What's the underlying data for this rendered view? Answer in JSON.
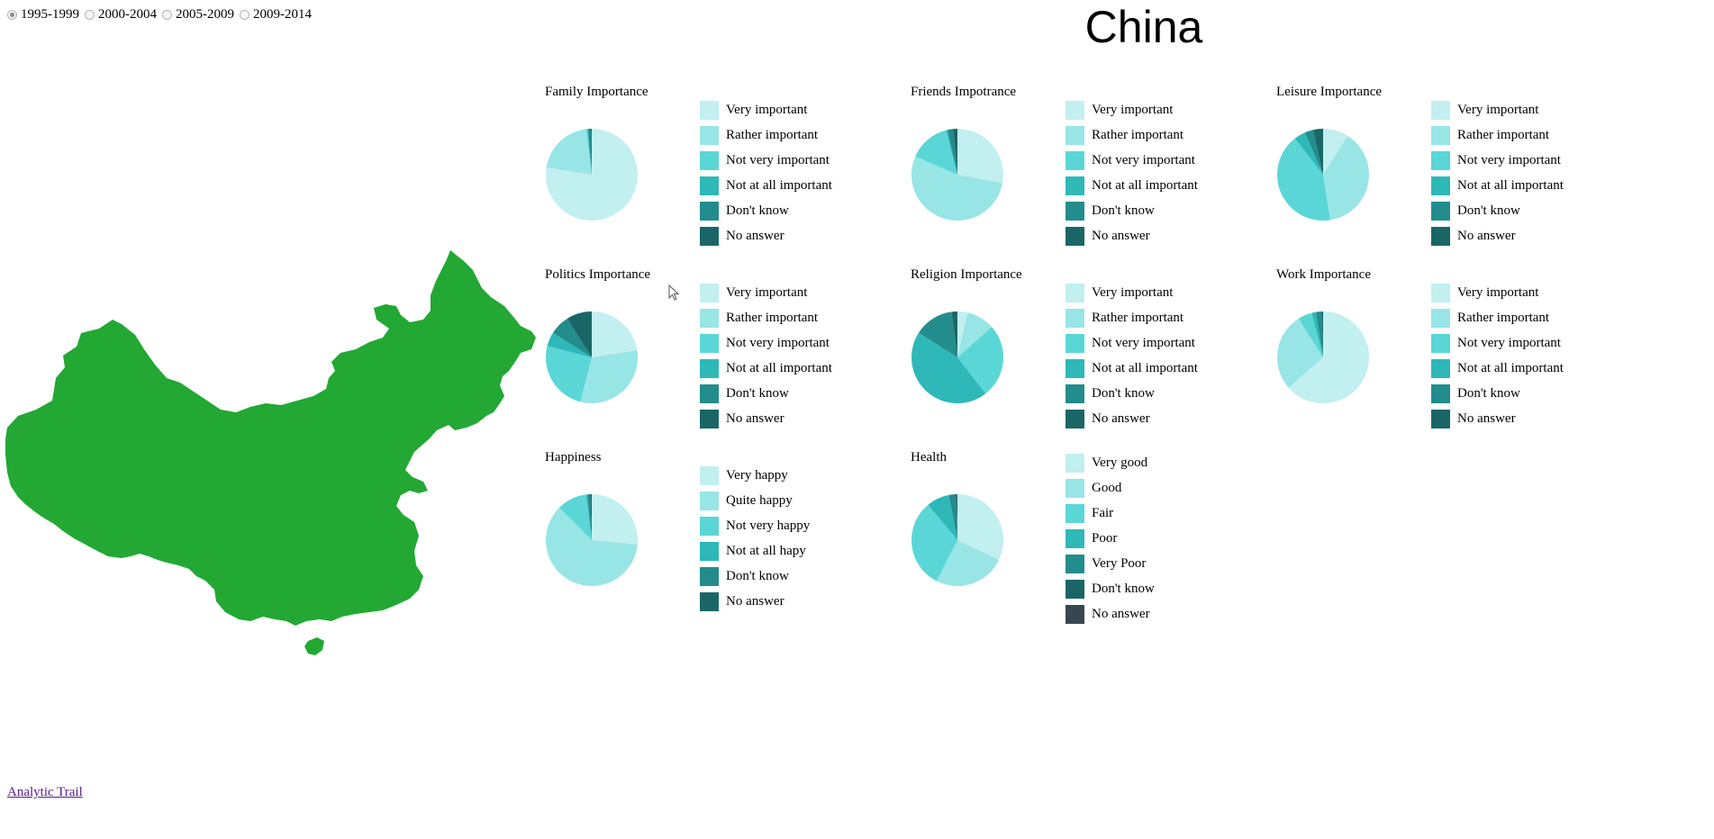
{
  "period_options": [
    {
      "label": "1995-1999",
      "checked": true
    },
    {
      "label": "2000-2004",
      "checked": false
    },
    {
      "label": "2005-2009",
      "checked": false
    },
    {
      "label": "2009-2014",
      "checked": false
    }
  ],
  "country": "China",
  "map_color": "#22a833",
  "analytic_link": "Analytic Trail",
  "importance_legend": [
    "Very important",
    "Rather important",
    "Not very important",
    "Not at all important",
    "Don't know",
    "No answer"
  ],
  "happiness_legend": [
    "Very happy",
    "Quite happy",
    "Not very happy",
    "Not at all hapy",
    "Don't know",
    "No answer"
  ],
  "health_legend": [
    "Very good",
    "Good",
    "Fair",
    "Poor",
    "Very Poor",
    "Don't know",
    "No answer"
  ],
  "palette": [
    "#c2eff0",
    "#98e5e6",
    "#5ad6d6",
    "#2eb8b8",
    "#238c8c",
    "#1a6666",
    "#37474f"
  ],
  "chart_data": [
    {
      "type": "pie",
      "title": "Family Importance",
      "categories": [
        "Very important",
        "Rather important",
        "Not very important",
        "Not at all important",
        "Don't know",
        "No answer"
      ],
      "values": [
        77.5,
        20.5,
        0.5,
        0.2,
        1.0,
        0.3
      ]
    },
    {
      "type": "pie",
      "title": "Friends Impotrance",
      "categories": [
        "Very important",
        "Rather important",
        "Not very important",
        "Not at all important",
        "Don't know",
        "No answer"
      ],
      "values": [
        28.0,
        53.5,
        14.5,
        0.5,
        2.0,
        1.5
      ]
    },
    {
      "type": "pie",
      "title": "Leisure Importance",
      "categories": [
        "Very important",
        "Rather important",
        "Not very important",
        "Not at all important",
        "Don't know",
        "No answer"
      ],
      "values": [
        9.0,
        38.5,
        42.0,
        4.0,
        3.0,
        3.5
      ]
    },
    {
      "type": "pie",
      "title": "Politics Importance",
      "categories": [
        "Very important",
        "Rather important",
        "Not very important",
        "Not at all important",
        "Don't know",
        "No answer"
      ],
      "values": [
        22.5,
        31.5,
        25.0,
        5.0,
        7.0,
        9.0
      ]
    },
    {
      "type": "pie",
      "title": "Religion Importance",
      "categories": [
        "Very important",
        "Rather important",
        "Not very important",
        "Not at all important",
        "Don't know",
        "No answer"
      ],
      "values": [
        3.5,
        10.0,
        26.0,
        44.5,
        14.0,
        2.0
      ]
    },
    {
      "type": "pie",
      "title": "Work Importance",
      "categories": [
        "Very important",
        "Rather important",
        "Not very important",
        "Not at all important",
        "Don't know",
        "No answer"
      ],
      "values": [
        63.5,
        27.5,
        5.0,
        1.5,
        2.0,
        0.5
      ]
    },
    {
      "type": "pie",
      "title": "Happiness",
      "categories": [
        "Very happy",
        "Quite happy",
        "Not very happy",
        "Not at all hapy",
        "Don't know",
        "No answer"
      ],
      "values": [
        26.5,
        61.0,
        10.5,
        0.5,
        1.0,
        0.5
      ]
    },
    {
      "type": "pie",
      "title": "Health",
      "categories": [
        "Very good",
        "Good",
        "Fair",
        "Poor",
        "Very Poor",
        "Don't know",
        "No answer"
      ],
      "values": [
        32.0,
        25.5,
        31.5,
        8.0,
        2.5,
        0.3,
        0.2
      ]
    }
  ]
}
